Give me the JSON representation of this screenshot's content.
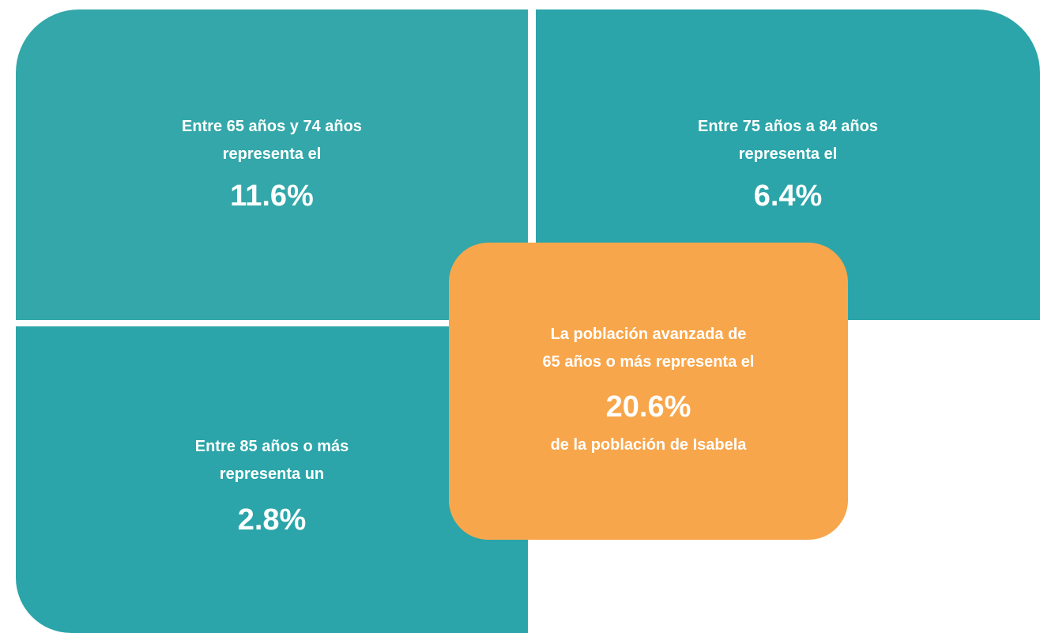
{
  "panels": [
    {
      "lines": [
        "Entre 65 años y 74 años",
        "representa el"
      ],
      "value": "11.6%"
    },
    {
      "lines": [
        "Entre 75 años a 84 años",
        "representa el"
      ],
      "value": "6.4%"
    },
    {
      "lines": [
        "Entre 85 años o más",
        "representa un"
      ],
      "value": "2.8%"
    }
  ],
  "summary": {
    "lines": [
      "La población avanzada de",
      "65 años o más representa el"
    ],
    "value": "20.6%",
    "footer": "de la población de Isabela"
  }
}
